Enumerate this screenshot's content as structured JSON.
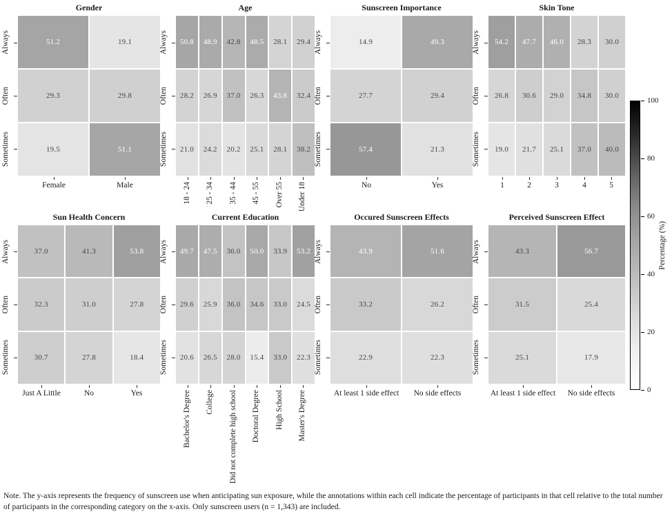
{
  "figure": {
    "note": "Note. The y-axis represents the frequency of sunscreen use when anticipating sun exposure, while the annotations within each cell indicate the percentage of participants in that cell relative to the total number of participants in the corresponding category on the x-axis. Only sunscreen users (n = 1,343) are included.",
    "colorbar": {
      "label": "Percentage (%)",
      "ticks": [
        0,
        20,
        40,
        60,
        80,
        100
      ],
      "min": 0,
      "max": 100
    }
  },
  "chart_data": [
    {
      "type": "heatmap",
      "title": "Gender",
      "x_categories": [
        "Female",
        "Male"
      ],
      "y_categories": [
        "Always",
        "Often",
        "Sometimes"
      ],
      "values": [
        [
          51.2,
          19.1
        ],
        [
          29.3,
          29.8
        ],
        [
          19.5,
          51.1
        ]
      ],
      "vmin": 0,
      "vmax": 100,
      "colormap": "Greys",
      "x_label_rotated": false
    },
    {
      "type": "heatmap",
      "title": "Age",
      "x_categories": [
        "18 - 24",
        "25 - 34",
        "35 - 44",
        "45 - 55",
        "Over 55",
        "Under 18"
      ],
      "y_categories": [
        "Always",
        "Often",
        "Sometimes"
      ],
      "values": [
        [
          50.8,
          48.9,
          42.8,
          48.5,
          28.1,
          29.4
        ],
        [
          28.2,
          26.9,
          37.0,
          26.3,
          43.8,
          32.4
        ],
        [
          21.0,
          24.2,
          20.2,
          25.1,
          28.1,
          38.2
        ]
      ],
      "vmin": 0,
      "vmax": 100,
      "colormap": "Greys",
      "x_label_rotated": true
    },
    {
      "type": "heatmap",
      "title": "Sunscreen Importance",
      "x_categories": [
        "No",
        "Yes"
      ],
      "y_categories": [
        "Always",
        "Often",
        "Sometimes"
      ],
      "values": [
        [
          14.9,
          49.3
        ],
        [
          27.7,
          29.4
        ],
        [
          57.4,
          21.3
        ]
      ],
      "vmin": 0,
      "vmax": 100,
      "colormap": "Greys",
      "x_label_rotated": false
    },
    {
      "type": "heatmap",
      "title": "Skin Tone",
      "x_categories": [
        "1",
        "2",
        "3",
        "4",
        "5"
      ],
      "y_categories": [
        "Always",
        "Often",
        "Sometimes"
      ],
      "values": [
        [
          54.2,
          47.7,
          46.0,
          28.3,
          30.0
        ],
        [
          26.8,
          30.6,
          29.0,
          34.8,
          30.0
        ],
        [
          19.0,
          21.7,
          25.1,
          37.0,
          40.0
        ]
      ],
      "vmin": 0,
      "vmax": 100,
      "colormap": "Greys",
      "x_label_rotated": false
    },
    {
      "type": "heatmap",
      "title": "Sun Health Concern",
      "x_categories": [
        "Just A Little",
        "No",
        "Yes"
      ],
      "y_categories": [
        "Always",
        "Often",
        "Sometimes"
      ],
      "values": [
        [
          37.0,
          41.3,
          53.8
        ],
        [
          32.3,
          31.0,
          27.8
        ],
        [
          30.7,
          27.8,
          18.4
        ]
      ],
      "vmin": 0,
      "vmax": 100,
      "colormap": "Greys",
      "x_label_rotated": false
    },
    {
      "type": "heatmap",
      "title": "Current Education",
      "x_categories": [
        "Bachelor's Degree",
        "College",
        "Did not complete high school",
        "Doctoral Degree",
        "High School",
        "Master's Degree"
      ],
      "y_categories": [
        "Always",
        "Often",
        "Sometimes"
      ],
      "values": [
        [
          49.7,
          47.5,
          36.0,
          50.0,
          33.9,
          53.2
        ],
        [
          29.6,
          25.9,
          36.0,
          34.6,
          33.0,
          24.5
        ],
        [
          20.6,
          26.5,
          28.0,
          15.4,
          33.0,
          22.3
        ]
      ],
      "vmin": 0,
      "vmax": 100,
      "colormap": "Greys",
      "x_label_rotated": true
    },
    {
      "type": "heatmap",
      "title": "Occured Sunscreen Effects",
      "x_categories": [
        "At least 1 side effect",
        "No side effects"
      ],
      "y_categories": [
        "Always",
        "Often",
        "Sometimes"
      ],
      "values": [
        [
          43.9,
          51.6
        ],
        [
          33.2,
          26.2
        ],
        [
          22.9,
          22.3
        ]
      ],
      "vmin": 0,
      "vmax": 100,
      "colormap": "Greys",
      "x_label_rotated": false
    },
    {
      "type": "heatmap",
      "title": "Perceived Sunscreen Effect",
      "x_categories": [
        "At least 1 side effect",
        "No side effects"
      ],
      "y_categories": [
        "Always",
        "Often",
        "Sometimes"
      ],
      "values": [
        [
          43.3,
          56.7
        ],
        [
          31.5,
          25.4
        ],
        [
          25.1,
          17.9
        ]
      ],
      "vmin": 0,
      "vmax": 100,
      "colormap": "Greys",
      "x_label_rotated": false
    }
  ]
}
